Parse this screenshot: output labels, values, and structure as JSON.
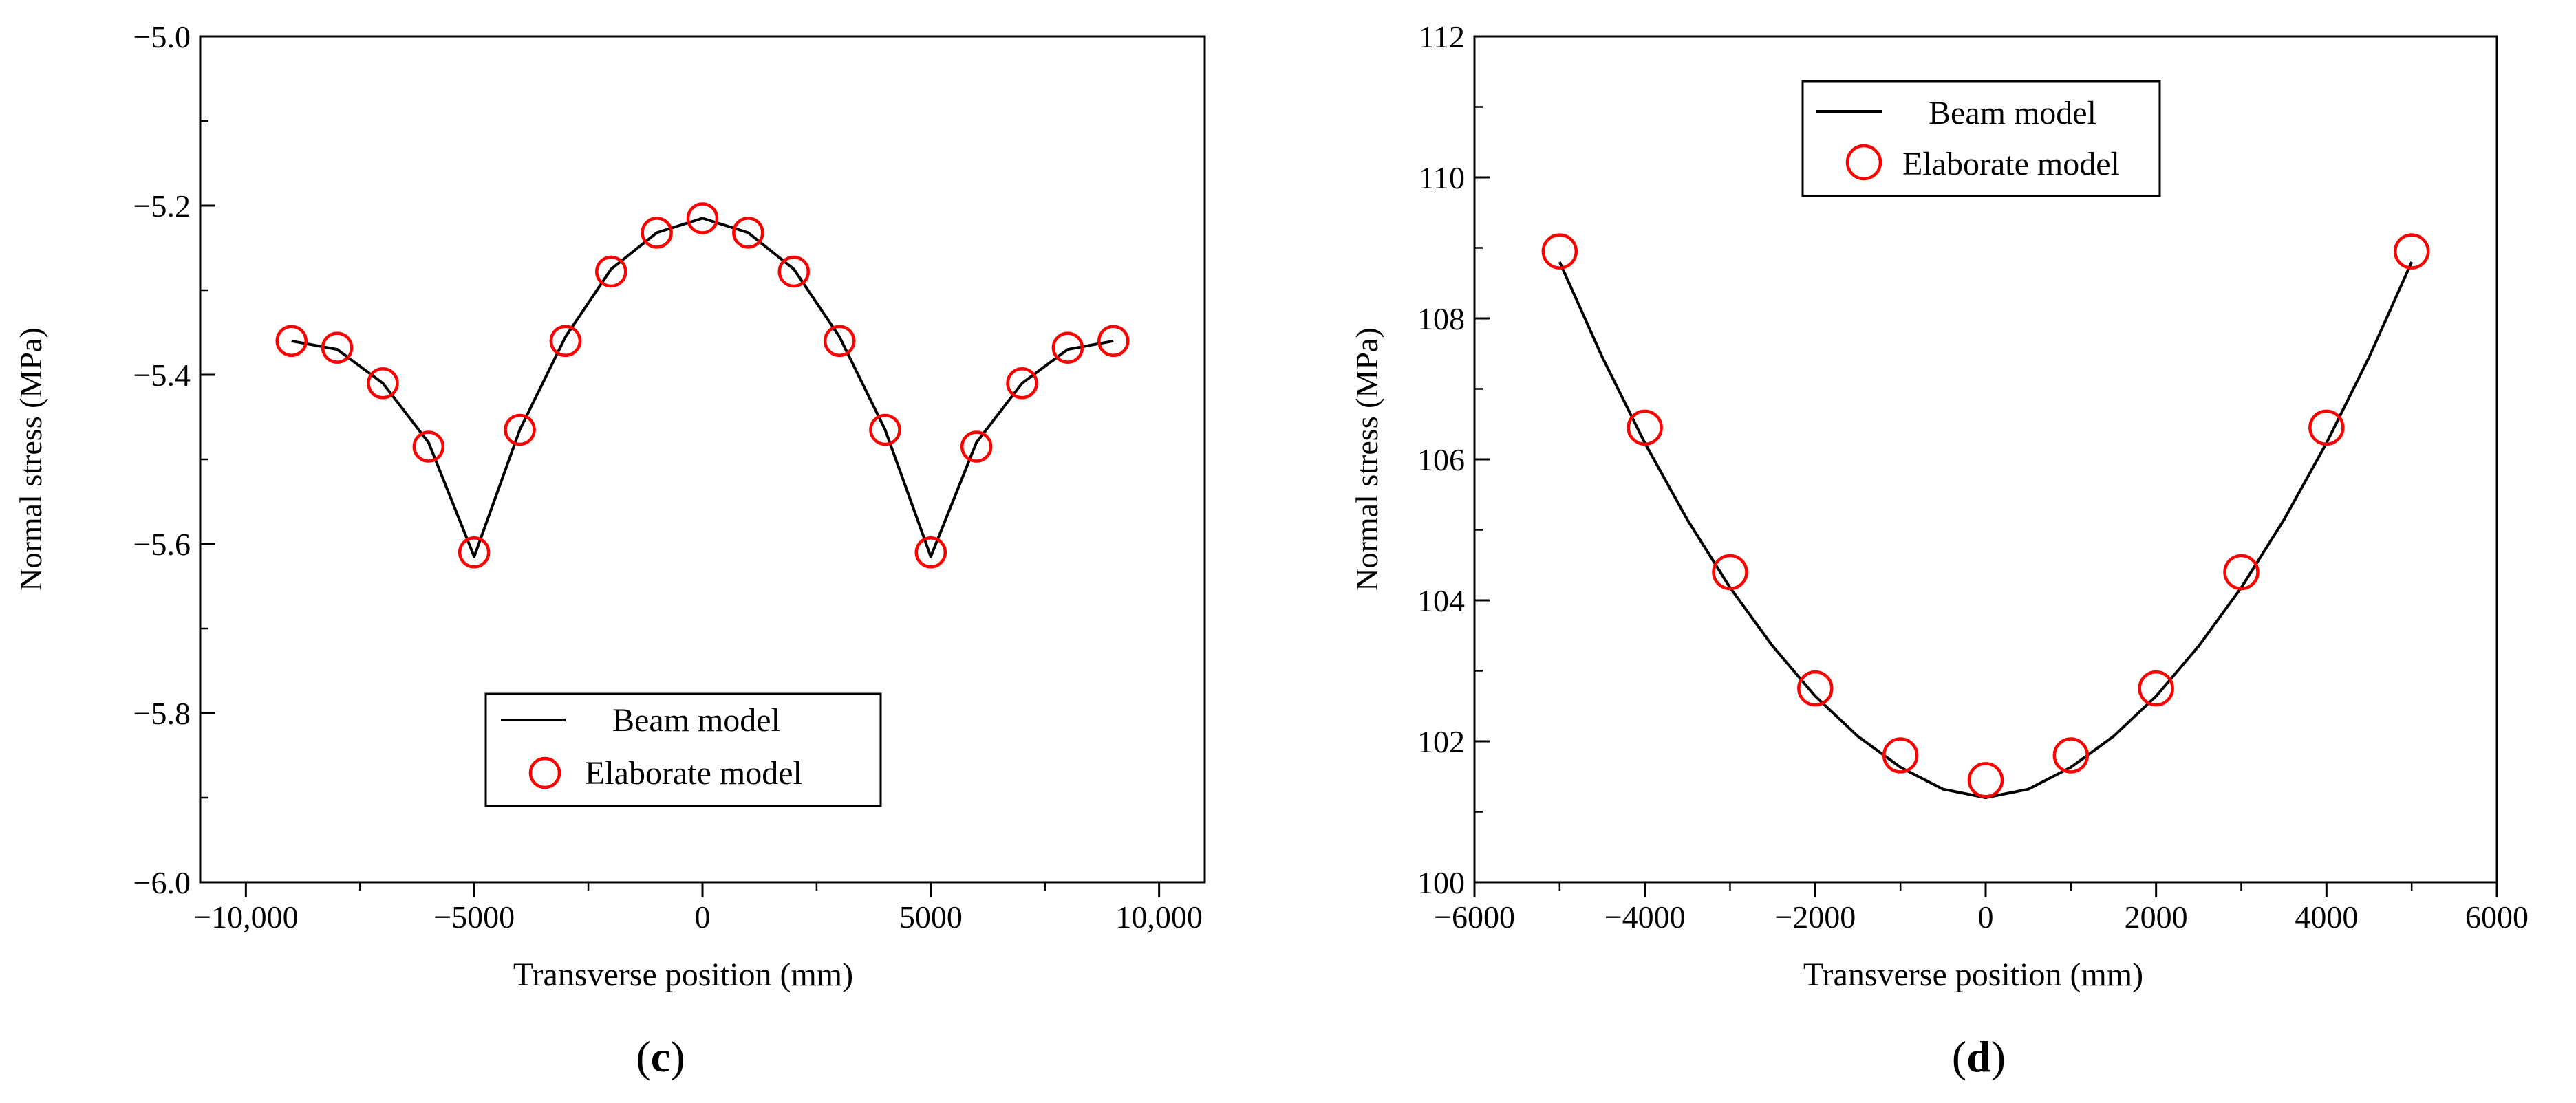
{
  "chart_data": [
    {
      "type": "line",
      "panel_label": "c",
      "title": "",
      "xlabel": "Transverse position (mm)",
      "ylabel": "Normal stress (MPa)",
      "xlim": [
        -11000,
        11000
      ],
      "ylim": [
        -6.0,
        -5.0
      ],
      "xticks": [
        -10000,
        -5000,
        0,
        5000,
        10000
      ],
      "xtick_labels": [
        "−10,000",
        "−5000",
        "0",
        "5000",
        "10,000"
      ],
      "yticks": [
        -6.0,
        -5.8,
        -5.6,
        -5.4,
        -5.2,
        -5.0
      ],
      "ytick_labels": [
        "−6.0",
        "−5.8",
        "−5.6",
        "−5.4",
        "−5.2",
        "−5.0"
      ],
      "grid": false,
      "legend_position": "bottom-center",
      "series": [
        {
          "name": "Beam model",
          "style": "line",
          "color": "#000000",
          "x": [
            -9000,
            -8000,
            -7000,
            -6000,
            -5000,
            -4000,
            -3000,
            -2000,
            -1000,
            0,
            1000,
            2000,
            3000,
            4000,
            5000,
            6000,
            7000,
            8000,
            9000
          ],
          "y": [
            -5.36,
            -5.37,
            -5.41,
            -5.48,
            -5.615,
            -5.465,
            -5.355,
            -5.275,
            -5.232,
            -5.215,
            -5.232,
            -5.275,
            -5.355,
            -5.465,
            -5.615,
            -5.48,
            -5.41,
            -5.37,
            -5.36
          ]
        },
        {
          "name": "Elaborate model",
          "style": "open-circle",
          "color": "#ff0000",
          "x": [
            -9000,
            -8000,
            -7000,
            -6000,
            -5000,
            -4000,
            -3000,
            -2000,
            -1000,
            0,
            1000,
            2000,
            3000,
            4000,
            5000,
            6000,
            7000,
            8000,
            9000
          ],
          "y": [
            -5.36,
            -5.368,
            -5.41,
            -5.485,
            -5.61,
            -5.465,
            -5.36,
            -5.278,
            -5.232,
            -5.215,
            -5.232,
            -5.278,
            -5.36,
            -5.465,
            -5.61,
            -5.485,
            -5.41,
            -5.368,
            -5.36
          ]
        }
      ]
    },
    {
      "type": "line",
      "panel_label": "d",
      "title": "",
      "xlabel": "Transverse position (mm)",
      "ylabel": "Normal stress (MPa)",
      "xlim": [
        -6000,
        6000
      ],
      "ylim": [
        100,
        112
      ],
      "xticks": [
        -6000,
        -4000,
        -2000,
        0,
        2000,
        4000,
        6000
      ],
      "xtick_labels": [
        "−6000",
        "−4000",
        "−2000",
        "0",
        "2000",
        "4000",
        "6000"
      ],
      "yticks": [
        100,
        102,
        104,
        106,
        108,
        110,
        112
      ],
      "ytick_labels": [
        "100",
        "102",
        "104",
        "106",
        "108",
        "110",
        "112"
      ],
      "grid": false,
      "legend_position": "top-center",
      "series": [
        {
          "name": "Beam model",
          "style": "line",
          "color": "#000000",
          "x": [
            -5000,
            -4500,
            -4000,
            -3500,
            -3000,
            -2500,
            -2000,
            -1500,
            -1000,
            -500,
            0,
            500,
            1000,
            1500,
            2000,
            2500,
            3000,
            3500,
            4000,
            4500,
            5000
          ],
          "y": [
            108.8,
            107.45,
            106.23,
            105.14,
            104.18,
            103.35,
            102.64,
            102.07,
            101.63,
            101.32,
            101.2,
            101.32,
            101.63,
            102.07,
            102.64,
            103.35,
            104.18,
            105.14,
            106.23,
            107.45,
            108.8
          ]
        },
        {
          "name": "Elaborate model",
          "style": "open-circle",
          "color": "#ff0000",
          "x": [
            -5000,
            -4000,
            -3000,
            -2000,
            -1000,
            0,
            1000,
            2000,
            3000,
            4000,
            5000
          ],
          "y": [
            108.95,
            106.45,
            104.4,
            102.75,
            101.8,
            101.45,
            101.8,
            102.75,
            104.4,
            106.45,
            108.95
          ]
        }
      ]
    }
  ]
}
